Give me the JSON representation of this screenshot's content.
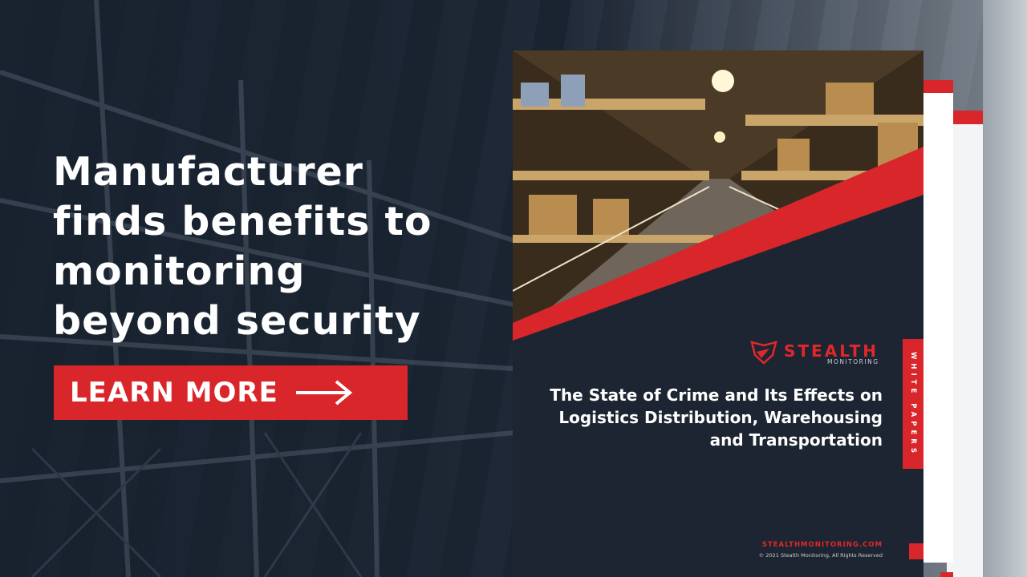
{
  "headline": "Manufacturer finds benefits to monitoring beyond security",
  "cta": {
    "label": "LEARN MORE",
    "icon": "arrow-right-icon"
  },
  "cover": {
    "brand_name": "STEALTH",
    "brand_sub": "MONITORING",
    "title": "The State of Crime and Its Effects on Logistics Distribution, Warehousing and Transportation",
    "side_tab": "WHITE PAPERS",
    "url": "STEALTHMONITORING.COM",
    "copyright": "© 2021 Stealth Monitoring, All Rights Reserved"
  },
  "colors": {
    "accent": "#d8262a",
    "navy": "#1c2531",
    "white": "#ffffff"
  }
}
